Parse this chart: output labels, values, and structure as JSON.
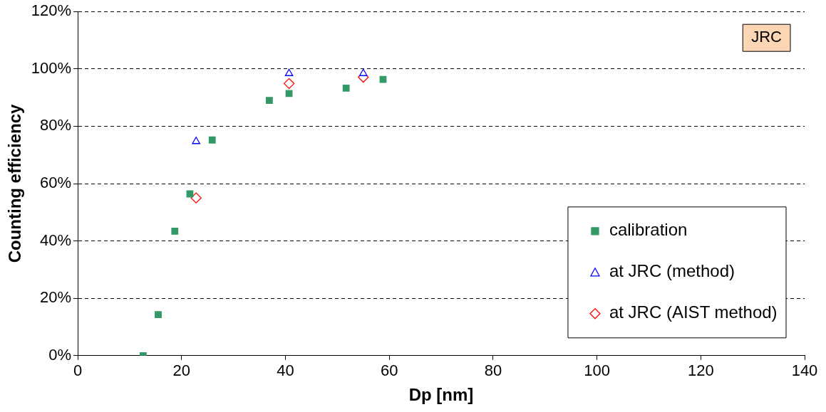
{
  "chart_data": {
    "type": "scatter",
    "xlabel": "Dp [nm]",
    "ylabel": "Counting efficiency",
    "annotations": [
      "JRC"
    ],
    "series": [
      {
        "name": "calibration",
        "color": "#339966",
        "marker": "square",
        "x": [
          12.6,
          15.5,
          18.7,
          21.6,
          25.9,
          36.9,
          40.7,
          51.7,
          58.8
        ],
        "values": [
          0,
          14.3,
          43.4,
          56.4,
          75.2,
          89,
          91.4,
          93.3,
          96.3
        ]
      },
      {
        "name": "at JRC (method)",
        "color": "#0000ff",
        "marker": "triangle",
        "x": [
          22.8,
          40.7,
          55
        ],
        "values": [
          74.7,
          98.4,
          98.4
        ]
      },
      {
        "name": "at JRC (AIST method)",
        "color": "#ff0000",
        "marker": "diamond",
        "x": [
          22.8,
          40.7,
          55
        ],
        "values": [
          55,
          94.9,
          97.1
        ]
      }
    ],
    "xlim": [
      0,
      140
    ],
    "xticks": [
      0,
      20,
      40,
      60,
      80,
      100,
      120,
      140
    ],
    "ylim": [
      0,
      120
    ],
    "yticks": [
      {
        "value": 0,
        "label": "0%"
      },
      {
        "value": 20,
        "label": "20%"
      },
      {
        "value": 40,
        "label": "40%"
      },
      {
        "value": 60,
        "label": "60%"
      },
      {
        "value": 80,
        "label": "80%"
      },
      {
        "value": 100,
        "label": "100%"
      },
      {
        "value": 120,
        "label": "120%"
      }
    ],
    "grid": "y",
    "line_style": "dashed",
    "legend": "bottom right"
  }
}
